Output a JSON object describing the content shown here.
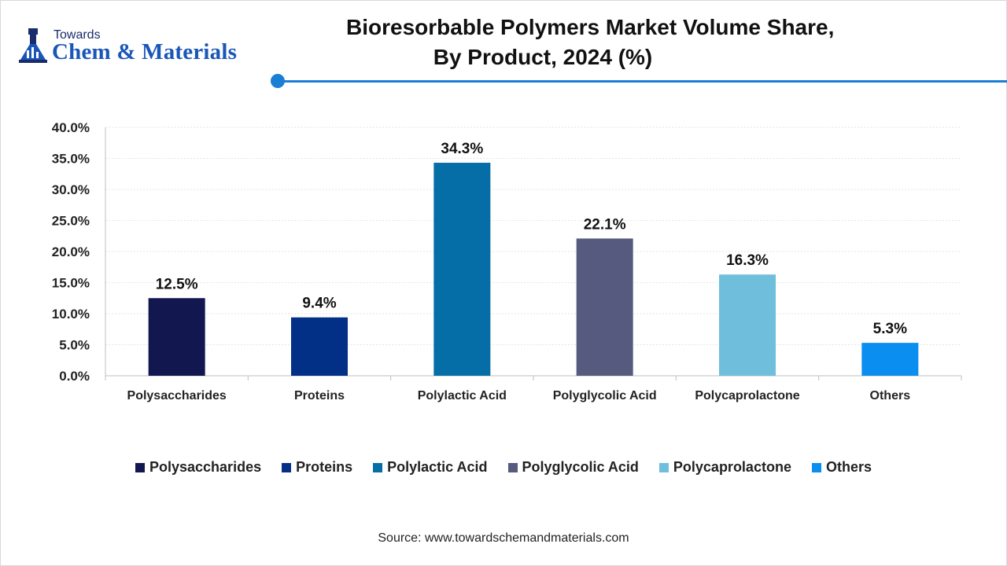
{
  "logo": {
    "small_text": "Towards",
    "big_text": "Chem & Materials",
    "colors": {
      "primary": "#1a56b8",
      "dark": "#1a2b6b"
    }
  },
  "title": {
    "line1": "Bioresorbable Polymers Market Volume Share,",
    "line2": "By Product, 2024 (%)"
  },
  "accent_color": "#1a7fd4",
  "chart_data": {
    "type": "bar",
    "categories": [
      "Polysaccharides",
      "Proteins",
      "Polylactic Acid",
      "Polyglycolic Acid",
      "Polycaprolactone",
      "Others"
    ],
    "values": [
      12.5,
      9.4,
      34.3,
      22.1,
      16.3,
      5.3
    ],
    "value_labels": [
      "12.5%",
      "9.4%",
      "34.3%",
      "22.1%",
      "16.3%",
      "5.3%"
    ],
    "colors": [
      "#13174f",
      "#033087",
      "#066ea6",
      "#555a7e",
      "#6fbedb",
      "#0a8ef0"
    ],
    "ylim": [
      0,
      40
    ],
    "yticks": [
      "0.0%",
      "5.0%",
      "10.0%",
      "15.0%",
      "20.0%",
      "25.0%",
      "30.0%",
      "35.0%",
      "40.0%"
    ],
    "grid": true,
    "legend_position": "bottom",
    "xlabel": "",
    "ylabel": ""
  },
  "source": "Source: www.towardschemandmaterials.com"
}
